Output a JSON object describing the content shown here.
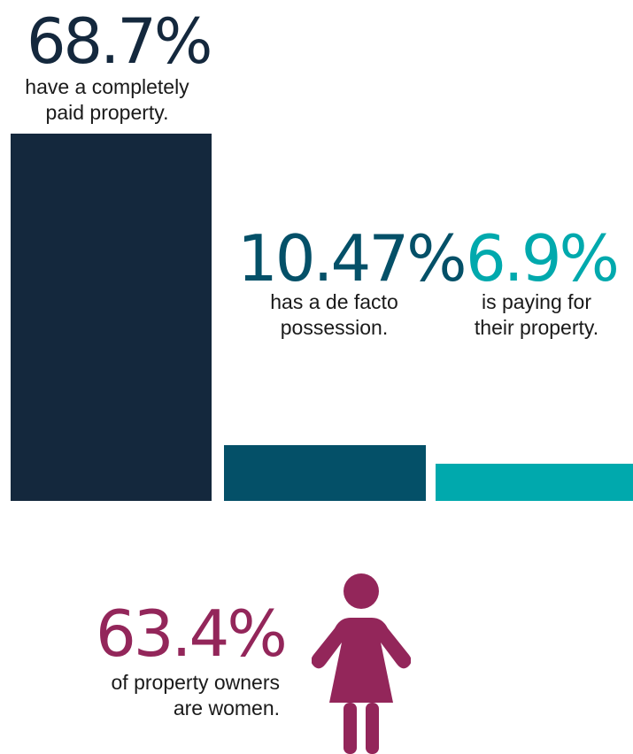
{
  "chart_data": {
    "type": "bar",
    "categories": [
      "have a completely paid property.",
      "has a de facto possession.",
      "is paying for their property."
    ],
    "values": [
      68.7,
      10.47,
      6.9
    ],
    "value_labels": [
      "68.7%",
      "10.47%",
      "6.9%"
    ],
    "caption_lines": [
      [
        "have a completely",
        "paid property."
      ],
      [
        "has a de facto",
        "possession."
      ],
      [
        "is paying for",
        "their property."
      ]
    ],
    "colors": [
      "#14283d",
      "#045068",
      "#00a9ad"
    ],
    "ylim": [
      0,
      68.7
    ],
    "grid": false
  },
  "women_stat": {
    "value_label": "63.4%",
    "caption_lines": [
      "of property owners",
      "are women."
    ],
    "color": "#93265a",
    "icon": "woman-icon"
  }
}
